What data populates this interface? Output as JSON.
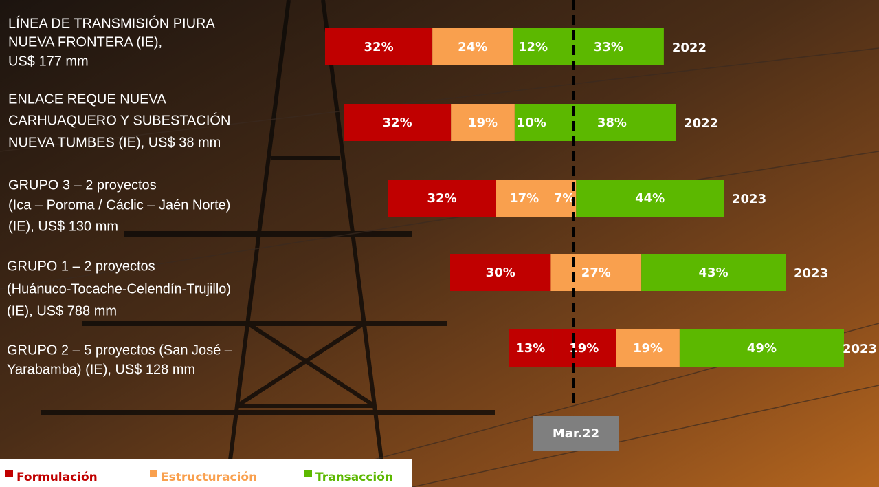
{
  "chart_data": {
    "type": "stacked-bar",
    "legend": [
      {
        "name": "Formulación",
        "color": "#c00000"
      },
      {
        "name": "Estructuración",
        "color": "#f9a04e"
      },
      {
        "name": "Transacción",
        "color": "#5cb800"
      }
    ],
    "marker": "Mar.22",
    "rows": [
      {
        "label": [
          "LÍNEA DE TRANSMISIÓN PIURA",
          "NUEVA FRONTERA (IE),",
          "US$ 177 mm"
        ],
        "year": "2022",
        "values": [
          32,
          24,
          12,
          33
        ],
        "value_labels": [
          "32%",
          "24%",
          "12%",
          "33%"
        ],
        "colors": [
          "#c00000",
          "#f9a04e",
          "#5cb800",
          "#5cb800"
        ]
      },
      {
        "label": [
          "ENLACE REQUE NUEVA",
          "CARHUAQUERO Y SUBESTACIÓN",
          "NUEVA TUMBES (IE), US$ 38 mm"
        ],
        "year": "2022",
        "values": [
          32,
          19,
          10,
          38
        ],
        "value_labels": [
          "32%",
          "19%",
          "10%",
          "38%"
        ],
        "colors": [
          "#c00000",
          "#f9a04e",
          "#5cb800",
          "#5cb800"
        ]
      },
      {
        "label": [
          "GRUPO 3 – 2 proyectos",
          "(Ica – Poroma / Cáclic – Jaén Norte)",
          "(IE), US$ 130 mm"
        ],
        "year": "2023",
        "values": [
          32,
          17,
          7,
          44
        ],
        "value_labels": [
          "32%",
          "17%",
          "7%",
          "44%"
        ],
        "colors": [
          "#c00000",
          "#f9a04e",
          "#f9a04e",
          "#5cb800"
        ]
      },
      {
        "label": [
          "GRUPO 1 – 2 proyectos",
          "(Huánuco-Tocache-Celendín-Trujillo)",
          "(IE), US$ 788 mm"
        ],
        "year": "2023",
        "values": [
          30,
          27,
          43
        ],
        "value_labels": [
          "30%",
          "27%",
          "43%"
        ],
        "colors": [
          "#c00000",
          "#f9a04e",
          "#5cb800"
        ]
      },
      {
        "label": [
          "GRUPO 2 – 5 proyectos (San José –",
          "Yarabamba) (IE), US$ 128 mm"
        ],
        "year": "2023",
        "values": [
          13,
          19,
          19,
          49
        ],
        "value_labels": [
          "13%",
          "19%",
          "19%",
          "49%"
        ],
        "colors": [
          "#c00000",
          "#c00000",
          "#f9a04e",
          "#5cb800"
        ]
      }
    ]
  }
}
